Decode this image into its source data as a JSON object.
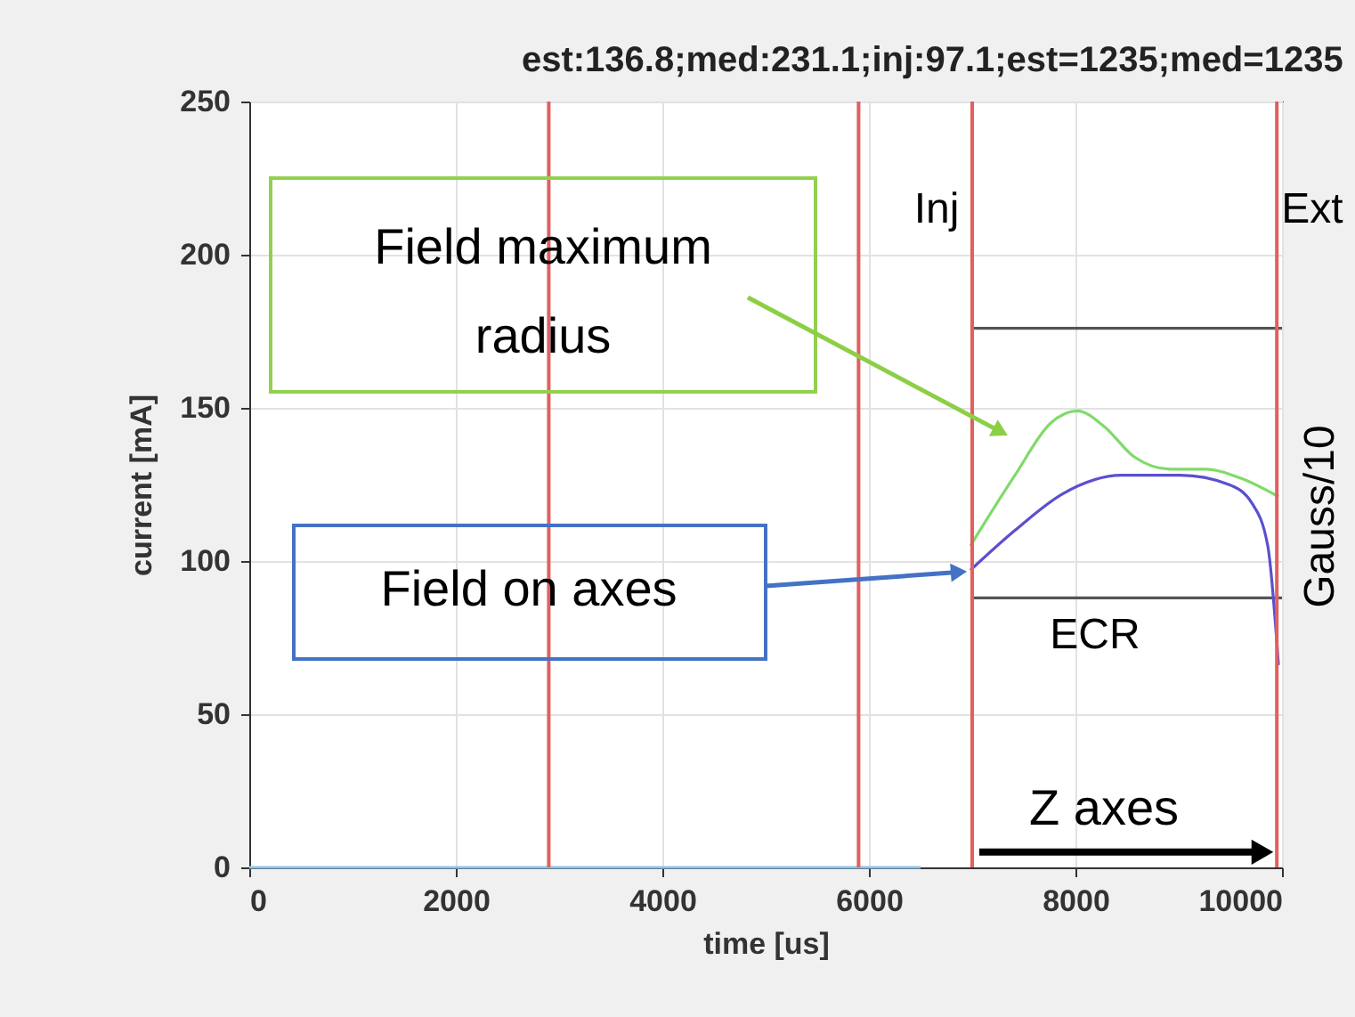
{
  "chart_data": {
    "type": "line",
    "title": "est:136.8;med:231.1;inj:97.1;est=1235;med=1235",
    "xlabel": "time [us]",
    "ylabel": "current [mA]",
    "xlim": [
      0,
      10000
    ],
    "xticks": [
      0,
      2000,
      4000,
      6000,
      8000,
      10000
    ],
    "ylim": [
      0,
      250
    ],
    "yticks": [
      0,
      50,
      100,
      150,
      200,
      250
    ],
    "grid": true,
    "series": [
      {
        "color": "#8fc4e8",
        "x": [
          0,
          6500
        ],
        "values": [
          0,
          0
        ]
      },
      {
        "color": "#555555",
        "x": [
          7000,
          10000
        ],
        "values": [
          176,
          176
        ]
      },
      {
        "color": "#555555",
        "x": [
          7000,
          10000
        ],
        "values": [
          88,
          88
        ]
      },
      {
        "color": "#7fdb6a",
        "x": [
          6983,
          7414,
          7759,
          8017,
          8276,
          8569,
          8914,
          9259,
          9603,
          9966
        ],
        "values": [
          105,
          128,
          145,
          149,
          144,
          134,
          130,
          130,
          127,
          121
        ]
      },
      {
        "color": "#5b4fcf",
        "x": [
          6983,
          7414,
          7879,
          8448,
          9017,
          9483,
          9707,
          9862,
          9966
        ],
        "values": [
          97,
          110,
          122,
          128,
          128,
          125,
          119,
          105,
          66
        ]
      }
    ],
    "ref_lines": [
      {
        "axis": "x",
        "value": 2900,
        "color": "#e06060"
      },
      {
        "axis": "x",
        "value": 5900,
        "color": "#e06060"
      },
      {
        "axis": "x",
        "value": 7000,
        "color": "#e06060"
      },
      {
        "axis": "x",
        "value": 9950,
        "color": "#e06060"
      }
    ],
    "annotations": [
      "Field maximum radius",
      "Field on axes",
      "Inj",
      "Ext",
      "ECR",
      "Gauss/10",
      {
        "text": "Z axes",
        "x": 7000,
        "y": 5
      }
    ]
  }
}
